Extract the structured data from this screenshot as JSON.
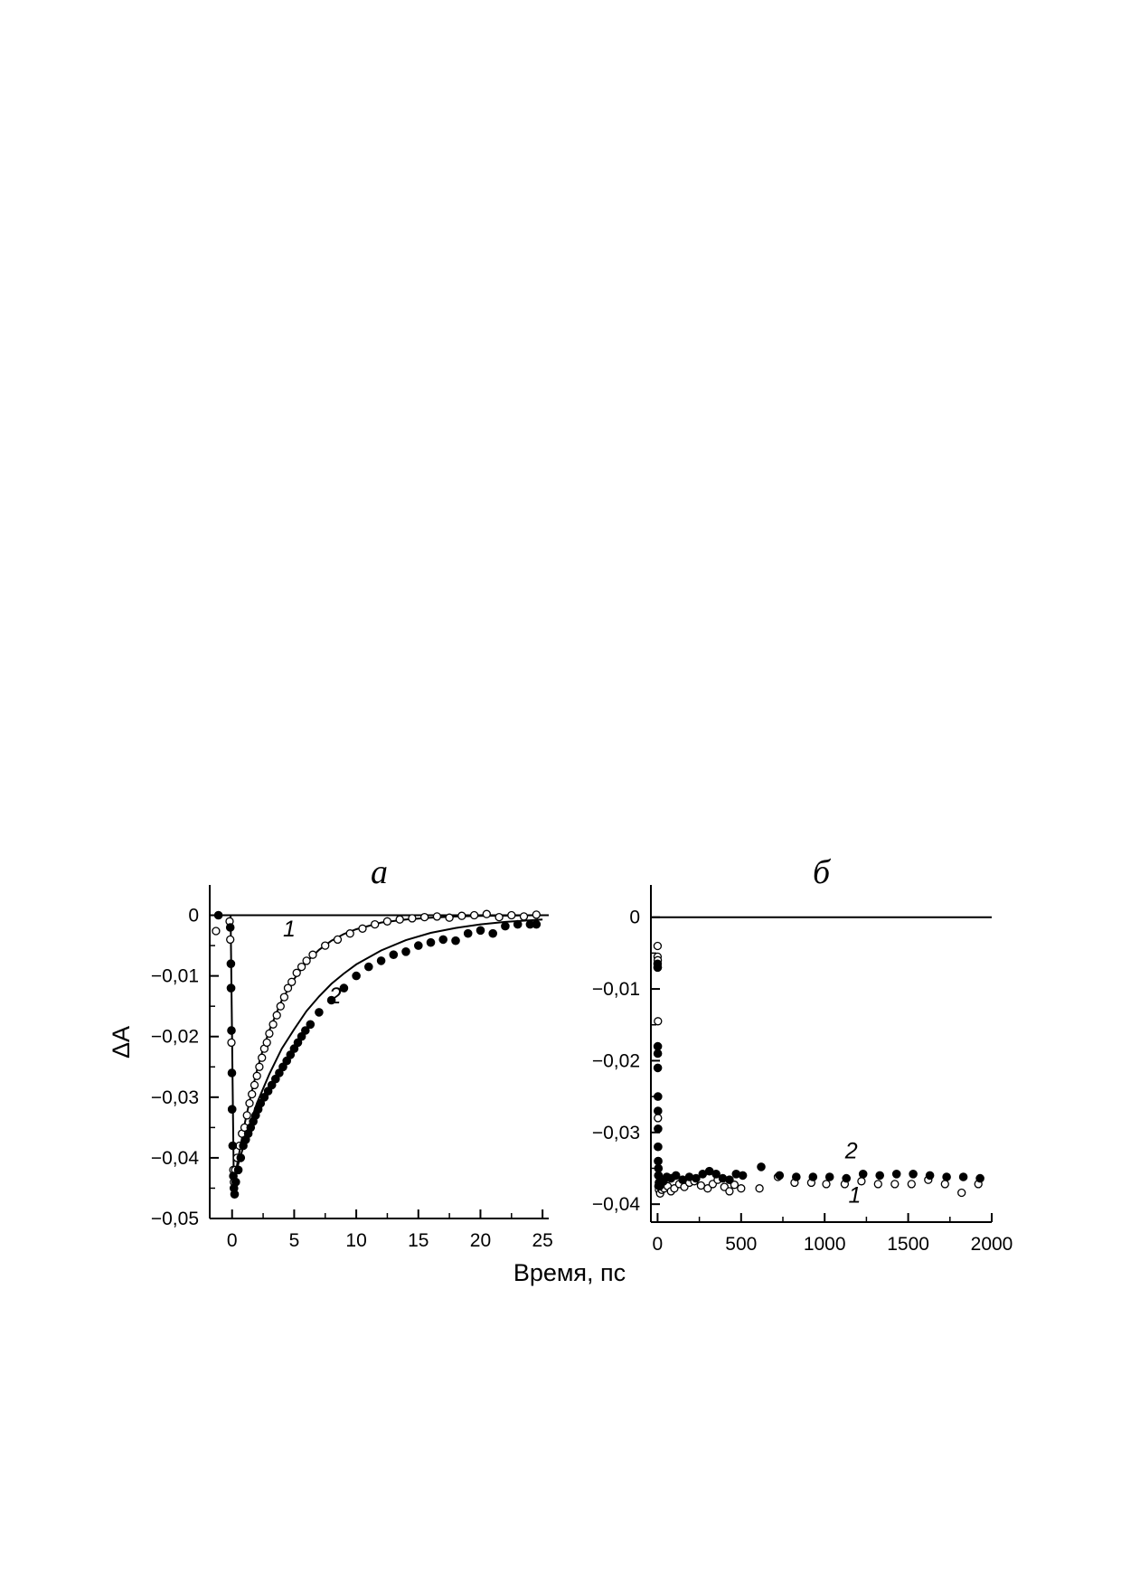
{
  "chart_data": [
    {
      "type": "scatter",
      "title": "а",
      "xlabel": "Время, пс",
      "ylabel": "ΔA",
      "xlim": [
        -1.8,
        25.5
      ],
      "ylim": [
        -0.05,
        0.005
      ],
      "xticks": [
        0,
        5,
        10,
        15,
        20,
        25
      ],
      "xtick_labels": [
        "0",
        "5",
        "10",
        "15",
        "20",
        "25"
      ],
      "yticks": [
        0,
        -0.01,
        -0.02,
        -0.03,
        -0.04,
        -0.05
      ],
      "ytick_labels": [
        "0",
        "−0,01",
        "−0,02",
        "−0,03",
        "−0,04",
        "−0,05"
      ],
      "grid": false,
      "zero_line": true,
      "series": [
        {
          "name": "1",
          "marker": "open-circle",
          "points": [
            [
              -1.3,
              -0.0026
            ],
            [
              -0.2,
              -0.001
            ],
            [
              -0.15,
              -0.004
            ],
            [
              -0.1,
              -0.012
            ],
            [
              -0.05,
              -0.021
            ],
            [
              0.0,
              -0.032
            ],
            [
              0.05,
              -0.038
            ],
            [
              0.1,
              -0.042
            ],
            [
              0.15,
              -0.044
            ],
            [
              0.25,
              -0.042
            ],
            [
              0.4,
              -0.04
            ],
            [
              0.6,
              -0.038
            ],
            [
              0.8,
              -0.036
            ],
            [
              1.0,
              -0.035
            ],
            [
              1.2,
              -0.033
            ],
            [
              1.4,
              -0.031
            ],
            [
              1.6,
              -0.0295
            ],
            [
              1.8,
              -0.028
            ],
            [
              2.0,
              -0.0265
            ],
            [
              2.2,
              -0.025
            ],
            [
              2.4,
              -0.0235
            ],
            [
              2.6,
              -0.022
            ],
            [
              2.8,
              -0.021
            ],
            [
              3.0,
              -0.0195
            ],
            [
              3.3,
              -0.018
            ],
            [
              3.6,
              -0.0165
            ],
            [
              3.9,
              -0.015
            ],
            [
              4.2,
              -0.0135
            ],
            [
              4.5,
              -0.012
            ],
            [
              4.8,
              -0.011
            ],
            [
              5.2,
              -0.0095
            ],
            [
              5.6,
              -0.0085
            ],
            [
              6.0,
              -0.0075
            ],
            [
              6.5,
              -0.0065
            ],
            [
              7.5,
              -0.005
            ],
            [
              8.5,
              -0.004
            ],
            [
              9.5,
              -0.003
            ],
            [
              10.5,
              -0.0022
            ],
            [
              11.5,
              -0.0015
            ],
            [
              12.5,
              -0.001
            ],
            [
              13.5,
              -0.0007
            ],
            [
              14.5,
              -0.0005
            ],
            [
              15.5,
              -0.0003
            ],
            [
              16.5,
              -0.0002
            ],
            [
              17.5,
              -0.0004
            ],
            [
              18.5,
              -0.0001
            ],
            [
              19.5,
              0.0
            ],
            [
              20.5,
              0.0002
            ],
            [
              21.5,
              -0.0003
            ],
            [
              22.5,
              0.0
            ],
            [
              23.5,
              -0.0002
            ],
            [
              24.5,
              0.0001
            ]
          ],
          "fit": [
            [
              0.0,
              -0.046
            ],
            [
              0.5,
              -0.04
            ],
            [
              1.0,
              -0.0345
            ],
            [
              1.5,
              -0.0298
            ],
            [
              2.0,
              -0.0256
            ],
            [
              2.5,
              -0.022
            ],
            [
              3.0,
              -0.019
            ],
            [
              4.0,
              -0.014
            ],
            [
              5.0,
              -0.0105
            ],
            [
              6.0,
              -0.0077
            ],
            [
              7.0,
              -0.0057
            ],
            [
              8.0,
              -0.0042
            ],
            [
              9.0,
              -0.0031
            ],
            [
              10.0,
              -0.0023
            ],
            [
              12.0,
              -0.0012
            ],
            [
              14.0,
              -0.0007
            ],
            [
              16.0,
              -0.0004
            ],
            [
              18.0,
              -0.0002
            ],
            [
              20.0,
              -0.0001
            ],
            [
              25.0,
              0.0
            ]
          ]
        },
        {
          "name": "2",
          "marker": "filled-circle",
          "points": [
            [
              -1.1,
              0.0
            ],
            [
              -0.15,
              -0.002
            ],
            [
              -0.1,
              -0.008
            ],
            [
              -0.08,
              -0.012
            ],
            [
              -0.05,
              -0.019
            ],
            [
              -0.02,
              -0.026
            ],
            [
              0.0,
              -0.032
            ],
            [
              0.05,
              -0.038
            ],
            [
              0.1,
              -0.043
            ],
            [
              0.15,
              -0.045
            ],
            [
              0.2,
              -0.046
            ],
            [
              0.3,
              -0.044
            ],
            [
              0.5,
              -0.042
            ],
            [
              0.7,
              -0.04
            ],
            [
              0.9,
              -0.038
            ],
            [
              1.1,
              -0.037
            ],
            [
              1.3,
              -0.036
            ],
            [
              1.5,
              -0.035
            ],
            [
              1.7,
              -0.034
            ],
            [
              1.9,
              -0.033
            ],
            [
              2.1,
              -0.032
            ],
            [
              2.3,
              -0.031
            ],
            [
              2.6,
              -0.03
            ],
            [
              2.9,
              -0.029
            ],
            [
              3.2,
              -0.028
            ],
            [
              3.5,
              -0.027
            ],
            [
              3.8,
              -0.026
            ],
            [
              4.1,
              -0.025
            ],
            [
              4.4,
              -0.024
            ],
            [
              4.7,
              -0.023
            ],
            [
              5.0,
              -0.022
            ],
            [
              5.3,
              -0.021
            ],
            [
              5.6,
              -0.02
            ],
            [
              5.9,
              -0.019
            ],
            [
              6.3,
              -0.018
            ],
            [
              7.0,
              -0.016
            ],
            [
              8.0,
              -0.014
            ],
            [
              9.0,
              -0.012
            ],
            [
              10.0,
              -0.01
            ],
            [
              11.0,
              -0.0085
            ],
            [
              12.0,
              -0.0075
            ],
            [
              13.0,
              -0.0065
            ],
            [
              14.0,
              -0.006
            ],
            [
              15.0,
              -0.005
            ],
            [
              16.0,
              -0.0045
            ],
            [
              17.0,
              -0.004
            ],
            [
              18.0,
              -0.0042
            ],
            [
              19.0,
              -0.003
            ],
            [
              20.0,
              -0.0025
            ],
            [
              21.0,
              -0.003
            ],
            [
              22.0,
              -0.0018
            ],
            [
              23.0,
              -0.0015
            ],
            [
              24.0,
              -0.0015
            ],
            [
              24.5,
              -0.0015
            ]
          ],
          "fit": [
            [
              0.0,
              -0.046
            ],
            [
              0.5,
              -0.041
            ],
            [
              1.0,
              -0.0375
            ],
            [
              1.5,
              -0.034
            ],
            [
              2.0,
              -0.031
            ],
            [
              3.0,
              -0.0262
            ],
            [
              4.0,
              -0.022
            ],
            [
              5.0,
              -0.0188
            ],
            [
              6.0,
              -0.0158
            ],
            [
              7.0,
              -0.0134
            ],
            [
              8.0,
              -0.0113
            ],
            [
              9.0,
              -0.0096
            ],
            [
              10.0,
              -0.0081
            ],
            [
              12.0,
              -0.0058
            ],
            [
              14.0,
              -0.0041
            ],
            [
              16.0,
              -0.0029
            ],
            [
              18.0,
              -0.0021
            ],
            [
              20.0,
              -0.0015
            ],
            [
              22.0,
              -0.0011
            ],
            [
              25.0,
              -0.0007
            ]
          ]
        }
      ],
      "rise_line": [
        [
          -0.12,
          0.0
        ],
        [
          0.15,
          -0.046
        ]
      ],
      "curve_labels": [
        {
          "text": "1",
          "x": 4.6,
          "y": -0.0035
        },
        {
          "text": "2",
          "x": 8.3,
          "y": -0.0145
        }
      ]
    },
    {
      "type": "scatter",
      "title": "б",
      "xlabel": "Время, пс",
      "ylabel": "",
      "xlim": [
        -40,
        2000
      ],
      "ylim": [
        -0.0425,
        0.0045
      ],
      "xticks": [
        0,
        500,
        1000,
        1500,
        2000
      ],
      "xtick_labels": [
        "0",
        "500",
        "1000",
        "1500",
        "2000"
      ],
      "yticks": [
        0,
        -0.01,
        -0.02,
        -0.03,
        -0.04
      ],
      "ytick_labels": [
        "0",
        "−0,01",
        "−0,02",
        "−0,03",
        "−0,04"
      ],
      "grid": false,
      "zero_line": true,
      "series": [
        {
          "name": "1",
          "marker": "open-circle",
          "points": [
            [
              0,
              -0.004
            ],
            [
              0,
              -0.0055
            ],
            [
              1,
              -0.006
            ],
            [
              1,
              -0.007
            ],
            [
              2,
              -0.0145
            ],
            [
              2,
              -0.028
            ],
            [
              3,
              -0.034
            ],
            [
              4,
              -0.036
            ],
            [
              5,
              -0.0375
            ],
            [
              8,
              -0.038
            ],
            [
              15,
              -0.0385
            ],
            [
              25,
              -0.038
            ],
            [
              40,
              -0.0378
            ],
            [
              60,
              -0.0375
            ],
            [
              80,
              -0.0382
            ],
            [
              100,
              -0.0378
            ],
            [
              130,
              -0.0372
            ],
            [
              160,
              -0.0376
            ],
            [
              190,
              -0.037
            ],
            [
              220,
              -0.0368
            ],
            [
              260,
              -0.0374
            ],
            [
              300,
              -0.0378
            ],
            [
              330,
              -0.0372
            ],
            [
              360,
              -0.0366
            ],
            [
              400,
              -0.0376
            ],
            [
              430,
              -0.0382
            ],
            [
              460,
              -0.0373
            ],
            [
              500,
              -0.0378
            ],
            [
              610,
              -0.0378
            ],
            [
              720,
              -0.0362
            ],
            [
              820,
              -0.037
            ],
            [
              920,
              -0.037
            ],
            [
              1010,
              -0.0372
            ],
            [
              1120,
              -0.0372
            ],
            [
              1220,
              -0.0368
            ],
            [
              1320,
              -0.0372
            ],
            [
              1420,
              -0.0372
            ],
            [
              1520,
              -0.0372
            ],
            [
              1620,
              -0.0366
            ],
            [
              1720,
              -0.0372
            ],
            [
              1820,
              -0.0384
            ],
            [
              1920,
              -0.0372
            ]
          ]
        },
        {
          "name": "2",
          "marker": "filled-circle",
          "points": [
            [
              0,
              -0.0065
            ],
            [
              0,
              -0.007
            ],
            [
              1,
              -0.018
            ],
            [
              1,
              -0.019
            ],
            [
              1,
              -0.021
            ],
            [
              2,
              -0.025
            ],
            [
              2,
              -0.027
            ],
            [
              3,
              -0.0295
            ],
            [
              3,
              -0.032
            ],
            [
              4,
              -0.034
            ],
            [
              5,
              -0.035
            ],
            [
              6,
              -0.036
            ],
            [
              8,
              -0.037
            ],
            [
              12,
              -0.0375
            ],
            [
              20,
              -0.037
            ],
            [
              35,
              -0.0368
            ],
            [
              55,
              -0.0362
            ],
            [
              80,
              -0.0364
            ],
            [
              110,
              -0.036
            ],
            [
              150,
              -0.0366
            ],
            [
              190,
              -0.0362
            ],
            [
              230,
              -0.0364
            ],
            [
              270,
              -0.0358
            ],
            [
              310,
              -0.0354
            ],
            [
              350,
              -0.0358
            ],
            [
              390,
              -0.0364
            ],
            [
              430,
              -0.0366
            ],
            [
              470,
              -0.0358
            ],
            [
              510,
              -0.036
            ],
            [
              620,
              -0.0348
            ],
            [
              730,
              -0.036
            ],
            [
              830,
              -0.0362
            ],
            [
              930,
              -0.0362
            ],
            [
              1030,
              -0.0362
            ],
            [
              1130,
              -0.0364
            ],
            [
              1230,
              -0.0358
            ],
            [
              1330,
              -0.036
            ],
            [
              1430,
              -0.0358
            ],
            [
              1530,
              -0.0358
            ],
            [
              1630,
              -0.036
            ],
            [
              1730,
              -0.0362
            ],
            [
              1830,
              -0.0362
            ],
            [
              1930,
              -0.0364
            ]
          ]
        }
      ],
      "curve_labels": [
        {
          "text": "2",
          "x": 1160,
          "y": -0.0336
        },
        {
          "text": "1",
          "x": 1180,
          "y": -0.0398
        }
      ]
    }
  ]
}
